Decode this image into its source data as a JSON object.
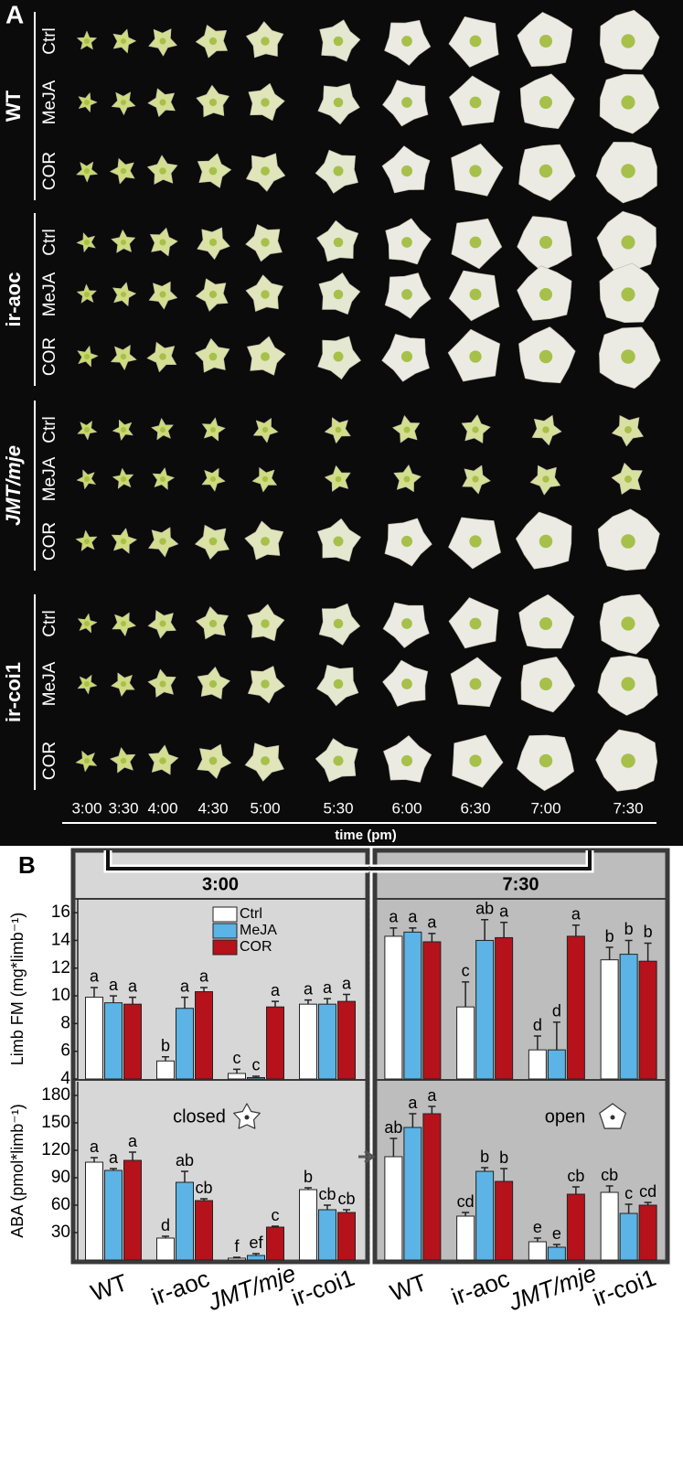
{
  "panel_a": {
    "label": "A",
    "genotypes": [
      {
        "name": "WT",
        "treatments": [
          "Ctrl",
          "MeJA",
          "COR"
        ]
      },
      {
        "name": "ir-aoc",
        "treatments": [
          "Ctrl",
          "MeJA",
          "COR"
        ]
      },
      {
        "name": "JMT/mje",
        "treatments": [
          "Ctrl",
          "MeJA",
          "COR"
        ]
      },
      {
        "name": "ir-coi1",
        "treatments": [
          "Ctrl",
          "MeJA",
          "COR"
        ]
      }
    ],
    "times": [
      "3:00",
      "3:30",
      "4:00",
      "4:30",
      "5:00",
      "5:30",
      "6:00",
      "6:30",
      "7:00",
      "7:30"
    ],
    "x_label": "time (pm)"
  },
  "panel_b": {
    "label": "B"
  },
  "chart_data": [
    {
      "type": "bar",
      "title": "3:00",
      "y_label": "Limb FM (mg*limb⁻¹)",
      "ylim": [
        4,
        17
      ],
      "yticks": [
        4,
        6,
        8,
        10,
        12,
        14,
        16
      ],
      "series": [
        {
          "name": "Ctrl",
          "color": "#ffffff",
          "values": [
            9.9,
            5.3,
            4.4,
            9.4
          ],
          "errors": [
            0.7,
            0.3,
            0.3,
            0.3
          ],
          "letters": [
            "a",
            "b",
            "c",
            "a"
          ]
        },
        {
          "name": "MeJA",
          "color": "#5bb4e5",
          "values": [
            9.5,
            9.1,
            4.1,
            9.4
          ],
          "errors": [
            0.5,
            0.8,
            0.1,
            0.4
          ],
          "letters": [
            "a",
            "a",
            "c",
            "a"
          ]
        },
        {
          "name": "COR",
          "color": "#b5121b",
          "values": [
            9.4,
            10.3,
            9.2,
            9.6
          ],
          "errors": [
            0.5,
            0.3,
            0.4,
            0.5
          ],
          "letters": [
            "a",
            "a",
            "a",
            "a"
          ]
        }
      ]
    },
    {
      "type": "bar",
      "title": "7:30",
      "ylim": [
        4,
        17
      ],
      "series": [
        {
          "color": "#ffffff",
          "values": [
            14.3,
            9.2,
            6.1,
            12.6
          ],
          "errors": [
            0.6,
            1.8,
            1.0,
            0.9
          ],
          "letters": [
            "a",
            "c",
            "d",
            "b"
          ]
        },
        {
          "color": "#5bb4e5",
          "values": [
            14.6,
            14.0,
            6.1,
            13.0
          ],
          "errors": [
            0.3,
            1.5,
            2.0,
            1.0
          ],
          "letters": [
            "a",
            "ab",
            "d",
            "b"
          ]
        },
        {
          "color": "#b5121b",
          "values": [
            13.9,
            14.2,
            14.3,
            12.5
          ],
          "errors": [
            0.6,
            1.1,
            0.8,
            1.3
          ],
          "letters": [
            "a",
            "a",
            "a",
            "b"
          ]
        }
      ]
    },
    {
      "type": "bar",
      "y_label": "ABA (pmol*limb⁻¹)",
      "annotation": "closed",
      "ylim": [
        0,
        195
      ],
      "yticks": [
        30,
        60,
        90,
        120,
        150,
        180
      ],
      "categories": [
        "WT",
        "ir-aoc",
        "JMT/mje",
        "ir-coi1"
      ],
      "series": [
        {
          "color": "#ffffff",
          "values": [
            107,
            24,
            2,
            77
          ],
          "errors": [
            5,
            2,
            1,
            2
          ],
          "letters": [
            "a",
            "d",
            "f",
            "b"
          ]
        },
        {
          "color": "#5bb4e5",
          "values": [
            98,
            85,
            5,
            55
          ],
          "errors": [
            2,
            12,
            2,
            5
          ],
          "letters": [
            "a",
            "ab",
            "ef",
            "cb"
          ]
        },
        {
          "color": "#b5121b",
          "values": [
            109,
            65,
            36,
            52
          ],
          "errors": [
            9,
            2,
            1,
            3
          ],
          "letters": [
            "a",
            "cb",
            "c",
            "cb"
          ]
        }
      ]
    },
    {
      "type": "bar",
      "annotation": "open",
      "ylim": [
        0,
        195
      ],
      "categories": [
        "WT",
        "ir-aoc",
        "JMT/mje",
        "ir-coi1"
      ],
      "series": [
        {
          "color": "#ffffff",
          "values": [
            113,
            48,
            20,
            74
          ],
          "errors": [
            20,
            4,
            4,
            7
          ],
          "letters": [
            "ab",
            "cd",
            "e",
            "cb"
          ]
        },
        {
          "color": "#5bb4e5",
          "values": [
            145,
            97,
            14,
            51
          ],
          "errors": [
            15,
            4,
            3,
            10
          ],
          "letters": [
            "a",
            "b",
            "e",
            "c"
          ]
        },
        {
          "color": "#b5121b",
          "values": [
            160,
            86,
            72,
            60
          ],
          "errors": [
            8,
            14,
            8,
            3
          ],
          "letters": [
            "a",
            "b",
            "cb",
            "cd"
          ]
        }
      ]
    }
  ]
}
